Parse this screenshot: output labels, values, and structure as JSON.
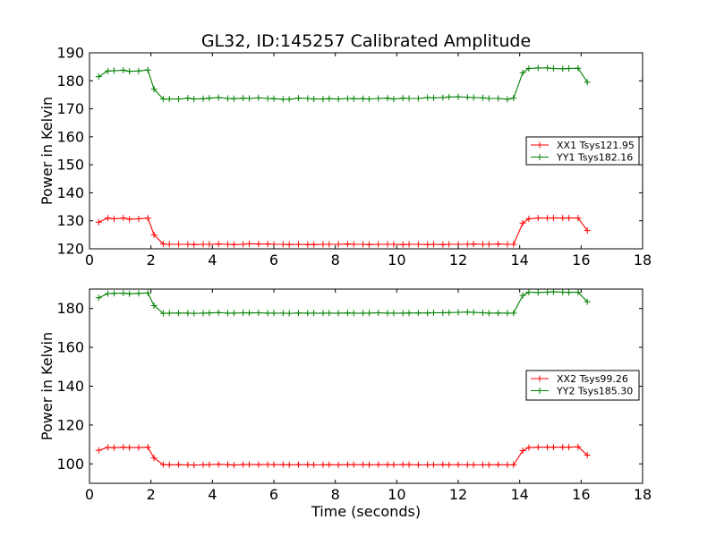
{
  "chart_data": [
    {
      "type": "line",
      "title": "GL32, ID:145257 Calibrated Amplitude",
      "xlabel": "",
      "ylabel": "Power in Kelvin",
      "xlim": [
        0,
        18
      ],
      "ylim": [
        120,
        190
      ],
      "xticks": [
        "0",
        "2",
        "4",
        "6",
        "8",
        "10",
        "12",
        "14",
        "16",
        "18"
      ],
      "yticks": [
        "120",
        "130",
        "140",
        "150",
        "160",
        "170",
        "180",
        "190"
      ],
      "legend_position": "center-right",
      "series": [
        {
          "name": "XX1 Tsys121.95",
          "color": "#ff0000",
          "x": [
            0.3,
            0.6,
            0.8,
            1.1,
            1.3,
            1.6,
            1.9,
            2.1,
            2.4,
            2.6,
            2.9,
            3.2,
            3.4,
            3.7,
            3.9,
            4.2,
            4.5,
            4.7,
            5.0,
            5.2,
            5.5,
            5.8,
            6.0,
            6.3,
            6.5,
            6.8,
            7.1,
            7.3,
            7.6,
            7.8,
            8.1,
            8.4,
            8.6,
            8.9,
            9.1,
            9.4,
            9.7,
            9.9,
            10.2,
            10.4,
            10.7,
            11.0,
            11.2,
            11.5,
            11.7,
            12.0,
            12.3,
            12.5,
            12.8,
            13.0,
            13.3,
            13.6,
            13.8,
            14.1,
            14.3,
            14.6,
            14.9,
            15.1,
            15.4,
            15.6,
            15.9,
            16.2
          ],
          "values": [
            129.5,
            131,
            130.7,
            131,
            130.6,
            130.7,
            131,
            125,
            121.7,
            121.6,
            121.6,
            121.6,
            121.5,
            121.6,
            121.6,
            121.7,
            121.6,
            121.5,
            121.6,
            121.8,
            121.7,
            121.7,
            121.6,
            121.6,
            121.5,
            121.6,
            121.5,
            121.5,
            121.6,
            121.6,
            121.6,
            121.7,
            121.6,
            121.6,
            121.5,
            121.6,
            121.6,
            121.6,
            121.5,
            121.6,
            121.6,
            121.5,
            121.6,
            121.5,
            121.6,
            121.6,
            121.6,
            121.7,
            121.6,
            121.6,
            121.7,
            121.6,
            121.6,
            129.2,
            130.7,
            131,
            131,
            131,
            131,
            131,
            131,
            126.5
          ]
        },
        {
          "name": "YY1 Tsys182.16",
          "color": "#008000",
          "x": [
            0.3,
            0.6,
            0.8,
            1.1,
            1.3,
            1.6,
            1.9,
            2.1,
            2.4,
            2.6,
            2.9,
            3.2,
            3.4,
            3.7,
            3.9,
            4.2,
            4.5,
            4.7,
            5.0,
            5.2,
            5.5,
            5.8,
            6.0,
            6.3,
            6.5,
            6.8,
            7.1,
            7.3,
            7.6,
            7.8,
            8.1,
            8.4,
            8.6,
            8.9,
            9.1,
            9.4,
            9.7,
            9.9,
            10.2,
            10.4,
            10.7,
            11.0,
            11.2,
            11.5,
            11.7,
            12.0,
            12.3,
            12.5,
            12.8,
            13.0,
            13.3,
            13.6,
            13.8,
            14.1,
            14.3,
            14.6,
            14.9,
            15.1,
            15.4,
            15.6,
            15.9,
            16.2
          ],
          "values": [
            181.5,
            183.5,
            183.6,
            183.8,
            183.4,
            183.5,
            183.9,
            177,
            173.5,
            173.5,
            173.5,
            173.8,
            173.5,
            173.6,
            173.8,
            174,
            173.7,
            173.6,
            173.8,
            173.7,
            173.9,
            173.7,
            173.6,
            173.4,
            173.4,
            173.8,
            173.7,
            173.5,
            173.5,
            173.6,
            173.5,
            173.7,
            173.6,
            173.6,
            173.5,
            173.7,
            173.8,
            173.5,
            173.8,
            173.7,
            173.7,
            174,
            173.9,
            174,
            174.2,
            174.3,
            174.1,
            174,
            173.9,
            173.7,
            173.7,
            173.4,
            173.8,
            182.9,
            184.4,
            184.6,
            184.6,
            184.4,
            184.3,
            184.4,
            184.5,
            179.5
          ]
        }
      ]
    },
    {
      "type": "line",
      "title": "",
      "xlabel": "Time (seconds)",
      "ylabel": "Power in Kelvin",
      "xlim": [
        0,
        18
      ],
      "ylim": [
        90,
        190
      ],
      "xticks": [
        "0",
        "2",
        "4",
        "6",
        "8",
        "10",
        "12",
        "14",
        "16",
        "18"
      ],
      "yticks": [
        "100",
        "120",
        "140",
        "160",
        "180"
      ],
      "legend_position": "center-right",
      "series": [
        {
          "name": "XX2 Tsys99.26",
          "color": "#ff0000",
          "x": [
            0.3,
            0.6,
            0.8,
            1.1,
            1.3,
            1.6,
            1.9,
            2.1,
            2.4,
            2.6,
            2.9,
            3.2,
            3.4,
            3.7,
            3.9,
            4.2,
            4.5,
            4.7,
            5.0,
            5.2,
            5.5,
            5.8,
            6.0,
            6.3,
            6.5,
            6.8,
            7.1,
            7.3,
            7.6,
            7.8,
            8.1,
            8.4,
            8.6,
            8.9,
            9.1,
            9.4,
            9.7,
            9.9,
            10.2,
            10.4,
            10.7,
            11.0,
            11.2,
            11.5,
            11.7,
            12.0,
            12.3,
            12.5,
            12.8,
            13.0,
            13.3,
            13.6,
            13.8,
            14.1,
            14.3,
            14.6,
            14.9,
            15.1,
            15.4,
            15.6,
            15.9,
            16.2
          ],
          "values": [
            107,
            108.5,
            108.3,
            108.6,
            108.4,
            108.4,
            108.6,
            103,
            99.6,
            99.5,
            99.6,
            99.5,
            99.4,
            99.5,
            99.6,
            99.8,
            99.6,
            99.4,
            99.6,
            99.7,
            99.6,
            99.7,
            99.6,
            99.6,
            99.5,
            99.6,
            99.6,
            99.5,
            99.5,
            99.6,
            99.5,
            99.6,
            99.6,
            99.6,
            99.5,
            99.6,
            99.6,
            99.5,
            99.6,
            99.6,
            99.5,
            99.5,
            99.5,
            99.6,
            99.5,
            99.6,
            99.5,
            99.5,
            99.5,
            99.5,
            99.6,
            99.5,
            99.5,
            106.8,
            108.4,
            108.6,
            108.6,
            108.6,
            108.6,
            108.6,
            108.8,
            104.5
          ]
        },
        {
          "name": "YY2 Tsys185.30",
          "color": "#008000",
          "x": [
            0.3,
            0.6,
            0.8,
            1.1,
            1.3,
            1.6,
            1.9,
            2.1,
            2.4,
            2.6,
            2.9,
            3.2,
            3.4,
            3.7,
            3.9,
            4.2,
            4.5,
            4.7,
            5.0,
            5.2,
            5.5,
            5.8,
            6.0,
            6.3,
            6.5,
            6.8,
            7.1,
            7.3,
            7.6,
            7.8,
            8.1,
            8.4,
            8.6,
            8.9,
            9.1,
            9.4,
            9.7,
            9.9,
            10.2,
            10.4,
            10.7,
            11.0,
            11.2,
            11.5,
            11.7,
            12.0,
            12.3,
            12.5,
            12.8,
            13.0,
            13.3,
            13.6,
            13.8,
            14.1,
            14.3,
            14.6,
            14.9,
            15.1,
            15.4,
            15.6,
            15.9,
            16.2
          ],
          "values": [
            185.5,
            187.7,
            187.8,
            187.9,
            187.6,
            187.8,
            188,
            181.5,
            177.5,
            177.6,
            177.7,
            177.6,
            177.5,
            177.6,
            177.7,
            177.9,
            177.6,
            177.6,
            177.8,
            177.7,
            177.8,
            177.6,
            177.6,
            177.6,
            177.5,
            177.7,
            177.6,
            177.6,
            177.6,
            177.6,
            177.6,
            177.7,
            177.6,
            177.6,
            177.6,
            177.8,
            177.6,
            177.6,
            177.6,
            177.7,
            177.7,
            177.7,
            177.8,
            177.8,
            177.9,
            178,
            178.2,
            178,
            177.8,
            177.6,
            177.7,
            177.6,
            177.6,
            186.7,
            188.4,
            188.2,
            188.4,
            188.6,
            188.4,
            188.3,
            188.4,
            183.5
          ]
        }
      ]
    }
  ]
}
